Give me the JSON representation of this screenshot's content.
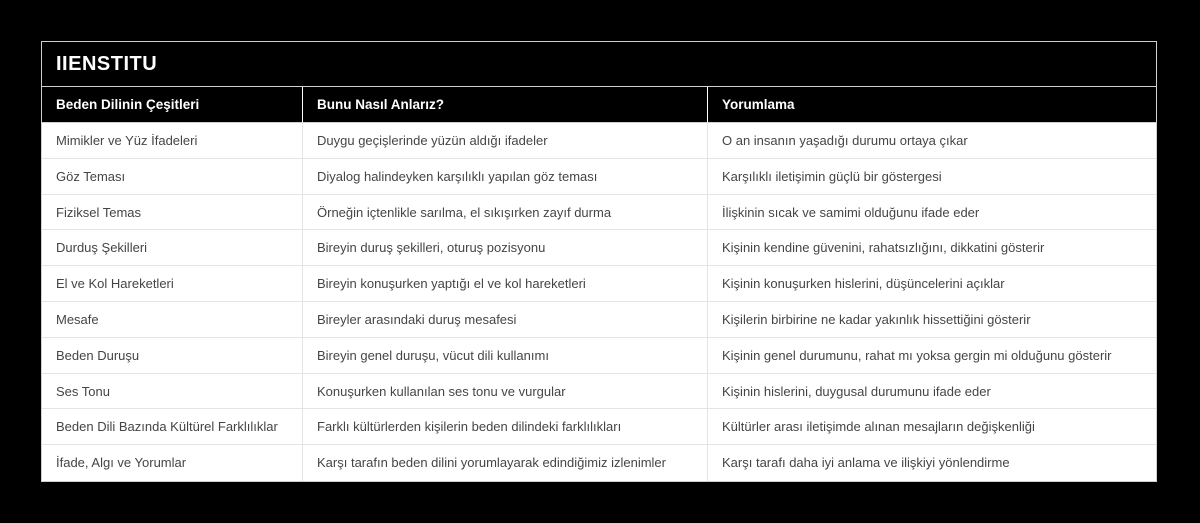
{
  "page": {
    "background_color": "#000000",
    "table_background_color": "#ffffff",
    "header_background_color": "#000000",
    "header_text_color": "#ffffff",
    "body_text_color": "#454545",
    "divider_color": "#e4e4e4"
  },
  "table": {
    "title": "IIENSTITU",
    "columns": [
      "Beden Dilinin Çeşitleri",
      "Bunu Nasıl Anlarız?",
      "Yorumlama"
    ],
    "rows": [
      [
        "Mimikler ve Yüz İfadeleri",
        "Duygu geçişlerinde yüzün aldığı ifadeler",
        "O an insanın yaşadığı durumu ortaya çıkar"
      ],
      [
        "Göz Teması",
        "Diyalog halindeyken karşılıklı yapılan göz teması",
        "Karşılıklı iletişimin güçlü bir göstergesi"
      ],
      [
        "Fiziksel Temas",
        "Örneğin içtenlikle sarılma, el sıkışırken zayıf durma",
        "İlişkinin sıcak ve samimi olduğunu ifade eder"
      ],
      [
        "Durduş Şekilleri",
        "Bireyin duruş şekilleri, oturuş pozisyonu",
        "Kişinin kendine güvenini, rahatsızlığını, dikkatini gösterir"
      ],
      [
        "El ve Kol Hareketleri",
        "Bireyin konuşurken yaptığı el ve kol hareketleri",
        "Kişinin konuşurken hislerini, düşüncelerini açıklar"
      ],
      [
        "Mesafe",
        "Bireyler arasındaki duruş mesafesi",
        "Kişilerin birbirine ne kadar yakınlık hissettiğini gösterir"
      ],
      [
        "Beden Duruşu",
        "Bireyin genel duruşu, vücut dili kullanımı",
        "Kişinin genel durumunu, rahat mı yoksa gergin mi olduğunu gösterir"
      ],
      [
        "Ses Tonu",
        "Konuşurken kullanılan ses tonu ve vurgular",
        "Kişinin hislerini, duygusal durumunu ifade eder"
      ],
      [
        "Beden Dili Bazında Kültürel Farklılıklar",
        "Farklı kültürlerden kişilerin beden dilindeki farklılıkları",
        "Kültürler arası iletişimde alınan mesajların değişkenliği"
      ],
      [
        "İfade, Algı ve Yorumlar",
        "Karşı tarafın beden dilini yorumlayarak edindiğimiz izlenimler",
        "Karşı tarafı daha iyi anlama ve ilişkiyi yönlendirme"
      ]
    ]
  }
}
